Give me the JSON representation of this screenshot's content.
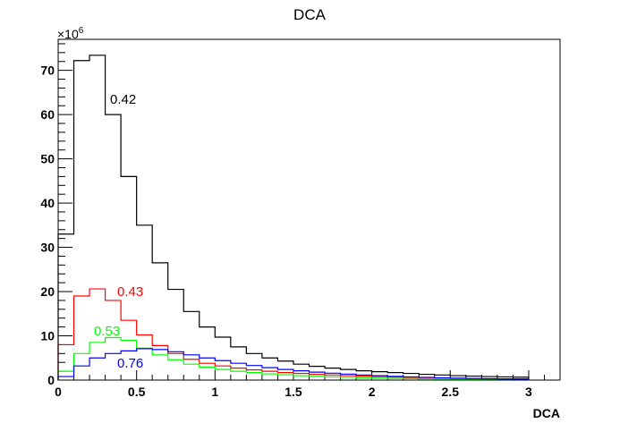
{
  "chart_data": {
    "type": "line",
    "style": "step-histogram",
    "title": "DCA",
    "xlabel": "DCA",
    "ylabel": "",
    "y_exponent_label": "×10",
    "y_exponent_power": "6",
    "xlim": [
      0,
      3.2
    ],
    "ylim": [
      0,
      77
    ],
    "x_ticks": [
      0,
      0.5,
      1,
      1.5,
      2,
      2.5,
      3
    ],
    "x_tick_labels": [
      "0",
      "0.5",
      "1",
      "1.5",
      "2",
      "2.5",
      "3"
    ],
    "y_ticks": [
      0,
      10,
      20,
      30,
      40,
      50,
      60,
      70
    ],
    "y_tick_labels": [
      "0",
      "10",
      "20",
      "30",
      "40",
      "50",
      "60",
      "70"
    ],
    "bin_width": 0.1,
    "x": [
      0.05,
      0.15,
      0.25,
      0.35,
      0.45,
      0.55,
      0.65,
      0.75,
      0.85,
      0.95,
      1.05,
      1.15,
      1.25,
      1.35,
      1.45,
      1.55,
      1.65,
      1.75,
      1.85,
      1.95,
      2.05,
      2.15,
      2.25,
      2.35,
      2.45,
      2.55,
      2.65,
      2.75,
      2.85,
      2.95
    ],
    "series": [
      {
        "label": "0.42",
        "color": "#000000",
        "values": [
          33,
          72.2,
          73.4,
          60,
          46,
          35,
          26.5,
          20.5,
          15.5,
          12,
          9.7,
          7.5,
          6,
          5,
          4.3,
          3.6,
          3.1,
          2.7,
          2.4,
          2.1,
          1.9,
          1.7,
          1.5,
          1.3,
          1.15,
          1.0,
          0.9,
          0.8,
          0.72,
          0.65
        ]
      },
      {
        "label": "0.43",
        "color": "#ff0000",
        "values": [
          8,
          19,
          20.6,
          18,
          13.5,
          10.2,
          7.8,
          6,
          4.7,
          3.8,
          3.2,
          2.7,
          2.3,
          2.0,
          1.7,
          1.5,
          1.3,
          1.15,
          1.0,
          0.9,
          0.8,
          0.7,
          0.62,
          0.55,
          0.48,
          0.42,
          0.37,
          0.32,
          0.28,
          0.25
        ]
      },
      {
        "label": "0.53",
        "color": "#00ff00",
        "values": [
          2,
          6,
          8.5,
          9.6,
          9.0,
          7.2,
          5.7,
          4.6,
          3.6,
          2.9,
          2.4,
          2.0,
          1.7,
          1.4,
          1.2,
          1.0,
          0.85,
          0.72,
          0.62,
          0.53,
          0.45,
          0.38,
          0.33,
          0.28,
          0.24,
          0.2,
          0.17,
          0.15,
          0.12,
          0.1
        ]
      },
      {
        "label": "0.76",
        "color": "#0000ff",
        "values": [
          0.8,
          3.2,
          5.0,
          6.0,
          6.6,
          7.1,
          6.9,
          6.4,
          5.7,
          5.0,
          4.4,
          3.8,
          3.3,
          2.8,
          2.4,
          2.1,
          1.8,
          1.55,
          1.35,
          1.15,
          1.0,
          0.85,
          0.72,
          0.62,
          0.52,
          0.44,
          0.37,
          0.31,
          0.26,
          0.22
        ]
      }
    ]
  }
}
